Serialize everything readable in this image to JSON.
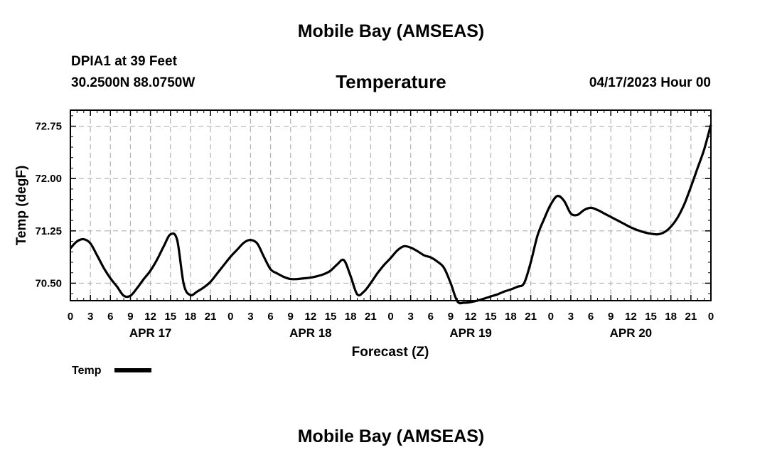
{
  "header": {
    "title": "Mobile Bay (AMSEAS)",
    "station": "DPIA1 at 39 Feet",
    "coords": "30.2500N  88.0750W",
    "run_time": "04/17/2023 Hour 00",
    "footer_title": "Mobile Bay (AMSEAS)"
  },
  "colors": {
    "line": "#000000",
    "grid": "#b3b3b3"
  },
  "chart_data": {
    "type": "line",
    "title": "Temperature",
    "xlabel": "Forecast (Z)",
    "ylabel": "Temp (degF)",
    "grid": true,
    "legend": "bottom-left",
    "ylim": [
      70.25,
      72.98
    ],
    "yticks": [
      70.5,
      71.25,
      72.0,
      72.75
    ],
    "ytick_labels": [
      "70.50",
      "71.25",
      "72.00",
      "72.75"
    ],
    "xlim": [
      0,
      96
    ],
    "xticks": [
      0,
      3,
      6,
      9,
      12,
      15,
      18,
      21,
      24,
      27,
      30,
      33,
      36,
      39,
      42,
      45,
      48,
      51,
      54,
      57,
      60,
      63,
      66,
      69,
      72,
      75,
      78,
      81,
      84,
      87,
      90,
      93,
      96
    ],
    "xtick_labels": [
      "0",
      "3",
      "6",
      "9",
      "12",
      "15",
      "18",
      "21",
      "0",
      "3",
      "6",
      "9",
      "12",
      "15",
      "18",
      "21",
      "0",
      "3",
      "6",
      "9",
      "12",
      "15",
      "18",
      "21",
      "0",
      "3",
      "6",
      "9",
      "12",
      "15",
      "18",
      "21",
      "0"
    ],
    "day_labels": [
      {
        "label": "APR 17",
        "x": 12
      },
      {
        "label": "APR 18",
        "x": 36
      },
      {
        "label": "APR 19",
        "x": 60
      },
      {
        "label": "APR 20",
        "x": 84
      }
    ],
    "series": [
      {
        "name": "Temp",
        "x": [
          0,
          1,
          2,
          3,
          4,
          5,
          6,
          7,
          8,
          9,
          10,
          11,
          12,
          13,
          14,
          15,
          16,
          17,
          18,
          19,
          20,
          21,
          22,
          23,
          24,
          25,
          26,
          27,
          28,
          29,
          30,
          31,
          32,
          33,
          34,
          35,
          36,
          37,
          38,
          39,
          40,
          41,
          42,
          43,
          44,
          45,
          46,
          47,
          48,
          49,
          50,
          51,
          52,
          53,
          54,
          55,
          56,
          57,
          58,
          59,
          60,
          61,
          62,
          63,
          64,
          65,
          66,
          67,
          68,
          69,
          70,
          71,
          72,
          73,
          74,
          75,
          76,
          77,
          78,
          79,
          80,
          81,
          82,
          83,
          84,
          85,
          86,
          87,
          88,
          89,
          90,
          91,
          92,
          93,
          94,
          95,
          96
        ],
        "values": [
          71.0,
          71.1,
          71.13,
          71.07,
          70.9,
          70.72,
          70.57,
          70.45,
          70.32,
          70.32,
          70.43,
          70.56,
          70.68,
          70.84,
          71.03,
          71.2,
          71.12,
          70.48,
          70.33,
          70.38,
          70.44,
          70.52,
          70.64,
          70.76,
          70.88,
          70.98,
          71.08,
          71.12,
          71.07,
          70.88,
          70.7,
          70.64,
          70.59,
          70.56,
          70.56,
          70.57,
          70.58,
          70.6,
          70.63,
          70.68,
          70.77,
          70.83,
          70.6,
          70.34,
          70.38,
          70.5,
          70.64,
          70.76,
          70.86,
          70.97,
          71.03,
          71.01,
          70.96,
          70.9,
          70.87,
          70.81,
          70.72,
          70.5,
          70.24,
          70.22,
          70.23,
          70.25,
          70.28,
          70.31,
          70.34,
          70.38,
          70.41,
          70.45,
          70.5,
          70.8,
          71.18,
          71.42,
          71.63,
          71.75,
          71.68,
          71.5,
          71.48,
          71.55,
          71.58,
          71.55,
          71.5,
          71.45,
          71.4,
          71.35,
          71.3,
          71.26,
          71.23,
          71.21,
          71.2,
          71.23,
          71.31,
          71.44,
          71.63,
          71.88,
          72.15,
          72.42,
          72.77
        ]
      }
    ]
  }
}
